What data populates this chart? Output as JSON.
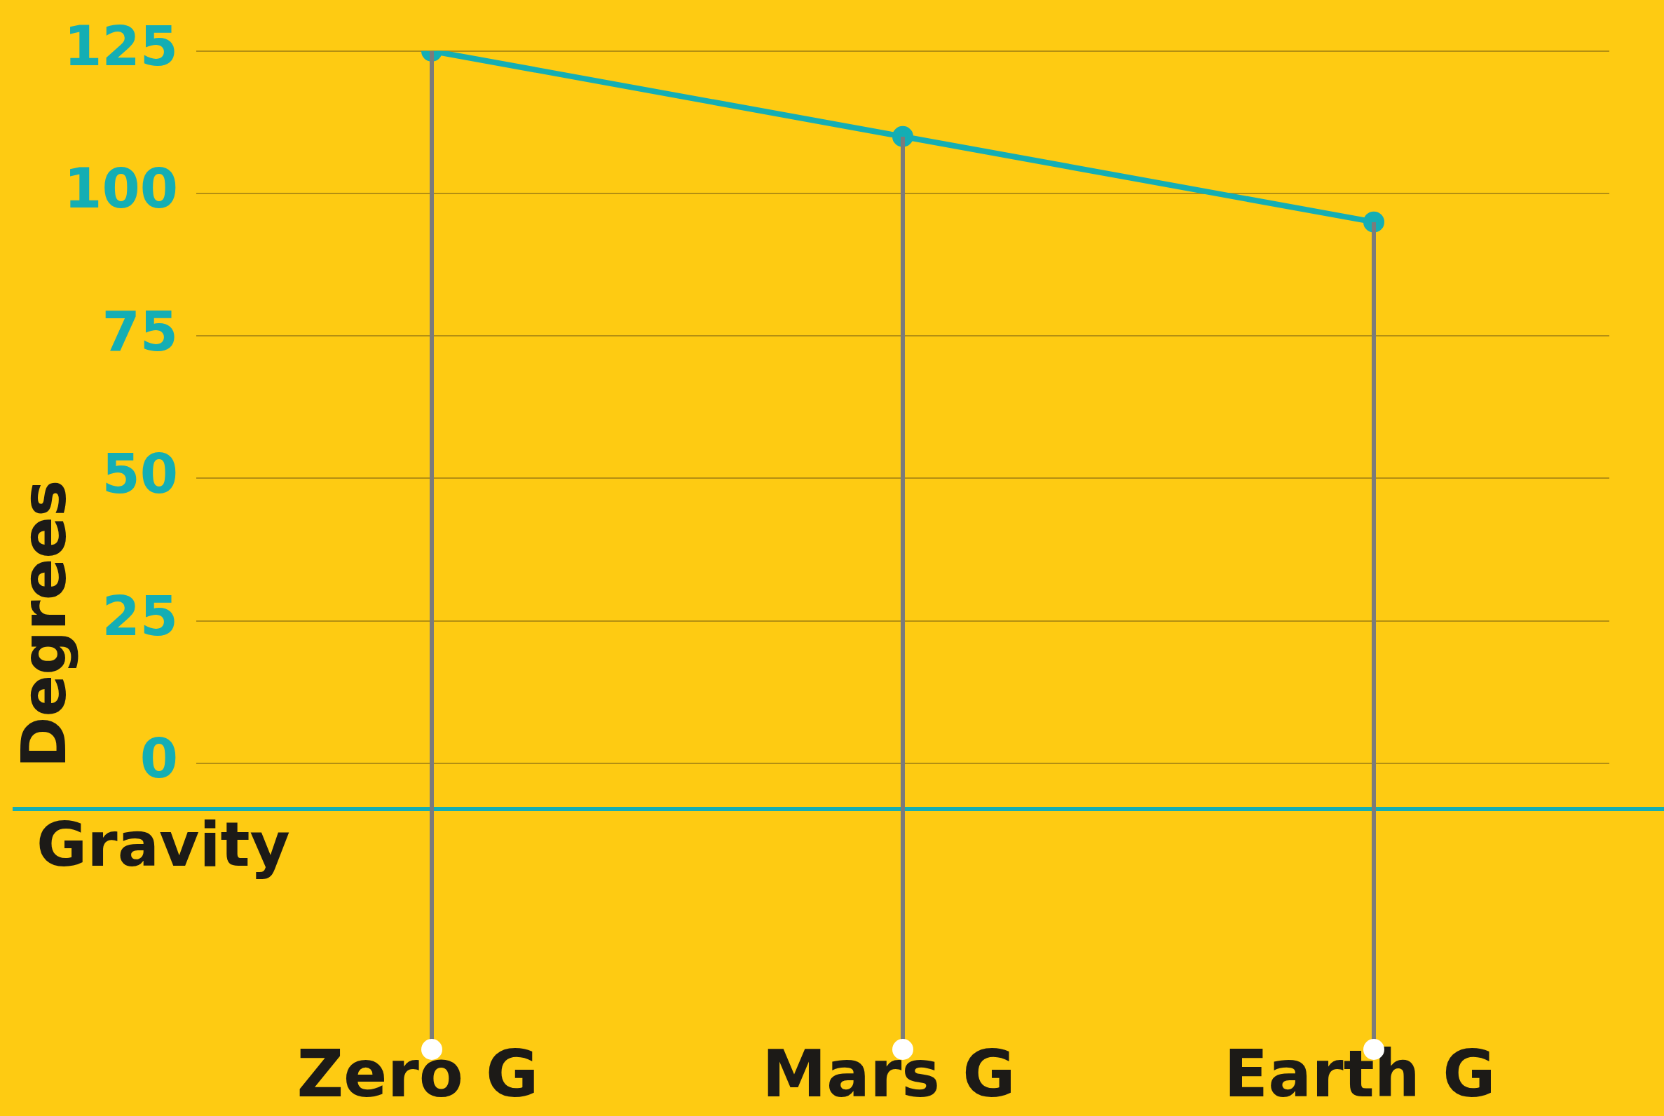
{
  "chart_data": {
    "type": "line",
    "xlabel": "Gravity",
    "ylabel": "Degrees",
    "categories": [
      "Zero G",
      "Mars G",
      "Earth G"
    ],
    "series": [
      {
        "color": "#14aeb4",
        "values": [
          125,
          110,
          95
        ]
      }
    ],
    "ylim": [
      -8,
      125
    ],
    "yticks": [
      0,
      25,
      50,
      75,
      100,
      125
    ],
    "grid": "y",
    "marker": "circle",
    "line_style": "solid",
    "legend": false
  }
}
